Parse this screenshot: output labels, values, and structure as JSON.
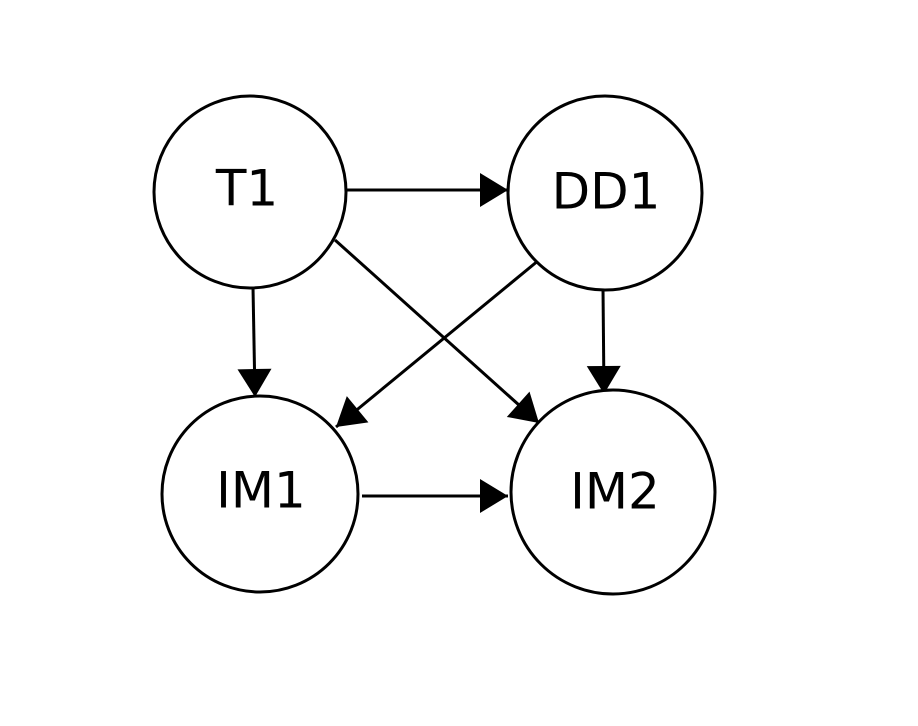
{
  "nodes": [
    {
      "label": "T1"
    },
    {
      "label": "DD1"
    },
    {
      "label": "IM1"
    },
    {
      "label": "IM2"
    }
  ]
}
